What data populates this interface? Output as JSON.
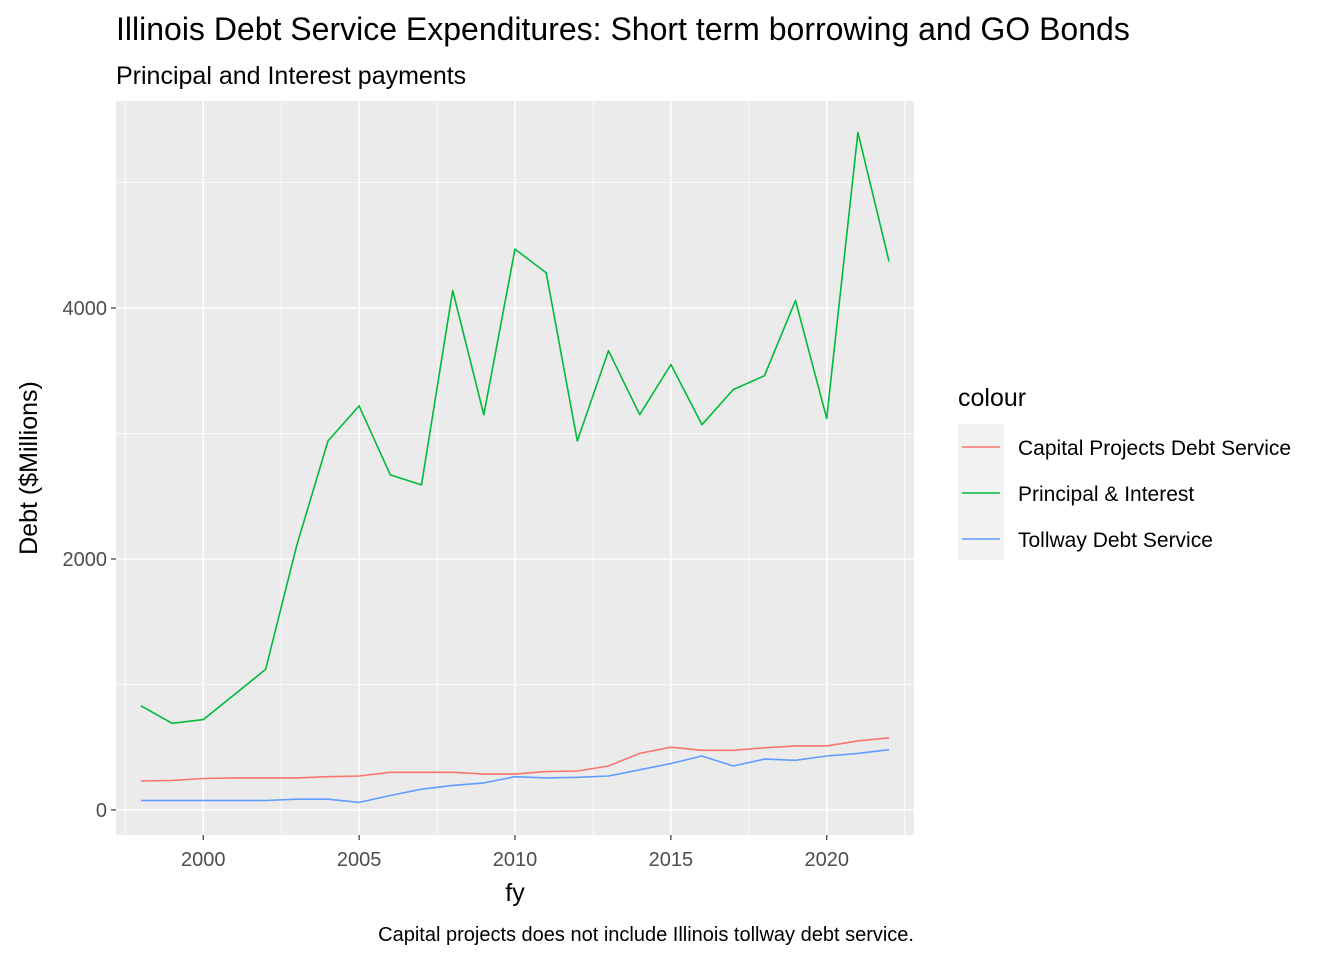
{
  "chart_data": {
    "type": "line",
    "title": "Illinois Debt Service Expenditures: Short term borrowing and GO Bonds",
    "subtitle": "Principal and Interest payments",
    "caption": "Capital projects does not include Illinois tollway debt service.",
    "xlabel": "fy",
    "ylabel": "Debt ($Millions)",
    "xlim": [
      1997.2,
      2022.8
    ],
    "ylim": [
      -200,
      5650
    ],
    "x_ticks": [
      2000,
      2005,
      2010,
      2015,
      2020
    ],
    "y_ticks": [
      0,
      2000,
      4000
    ],
    "grid": true,
    "legend": {
      "title": "colour",
      "placement": "right"
    },
    "x": [
      1998,
      1999,
      2000,
      2001,
      2002,
      2003,
      2004,
      2005,
      2006,
      2007,
      2008,
      2009,
      2010,
      2011,
      2012,
      2013,
      2014,
      2015,
      2016,
      2017,
      2018,
      2019,
      2020,
      2021,
      2022
    ],
    "series": [
      {
        "name": "Capital Projects Debt Service",
        "color": "#F8766D",
        "values": [
          230,
          235,
          250,
          255,
          255,
          255,
          265,
          270,
          300,
          300,
          300,
          285,
          285,
          305,
          310,
          350,
          450,
          500,
          475,
          475,
          495,
          510,
          510,
          550,
          575
        ]
      },
      {
        "name": "Principal & Interest",
        "color": "#00BA38",
        "values": [
          830,
          690,
          720,
          920,
          1120,
          2110,
          2940,
          3220,
          2670,
          2590,
          4140,
          3150,
          4470,
          4280,
          2940,
          3660,
          3150,
          3550,
          3070,
          3350,
          3460,
          4060,
          3120,
          5400,
          4370
        ]
      },
      {
        "name": "Tollway Debt Service",
        "color": "#619CFF",
        "values": [
          75,
          75,
          75,
          75,
          75,
          85,
          85,
          60,
          115,
          165,
          195,
          215,
          265,
          255,
          260,
          270,
          320,
          370,
          430,
          350,
          405,
          395,
          430,
          450,
          480
        ]
      }
    ]
  }
}
